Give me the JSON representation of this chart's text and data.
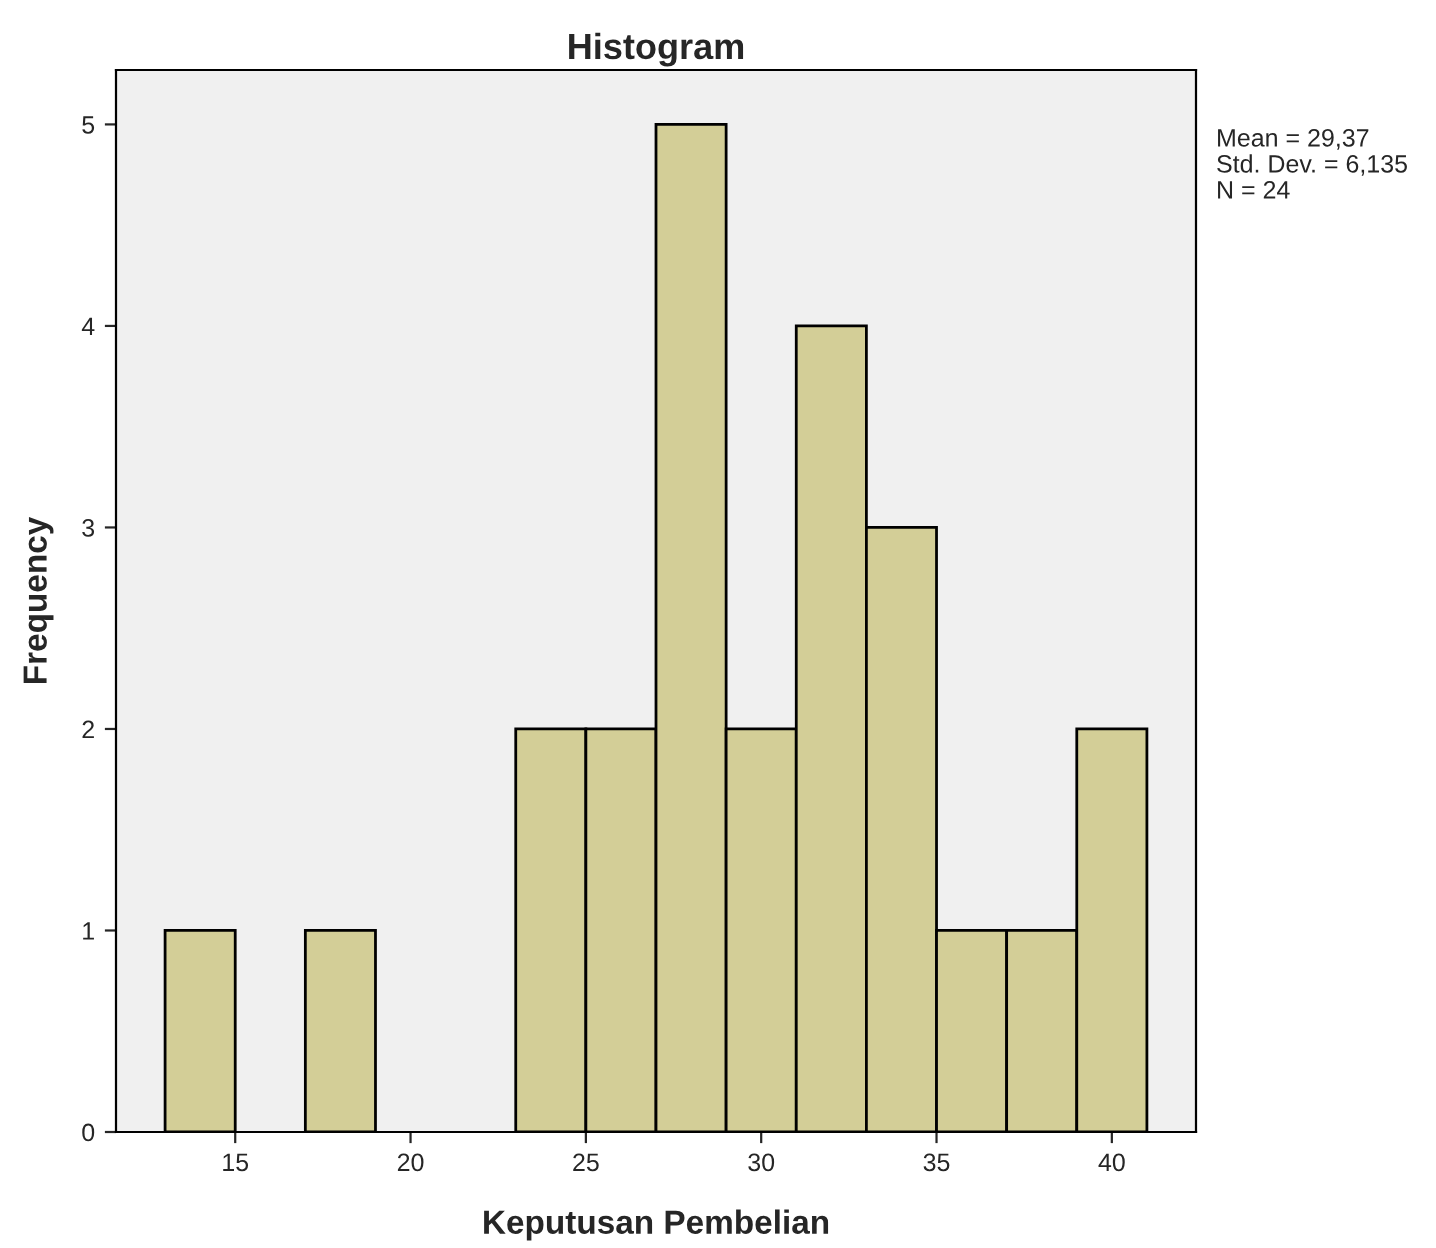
{
  "chart_data": {
    "type": "histogram",
    "title": "Histogram",
    "xlabel": "Keputusan Pembelian",
    "ylabel": "Frequency",
    "bins": [
      13,
      15,
      17,
      19,
      21,
      23,
      25,
      27,
      29,
      31,
      33,
      35,
      37,
      39,
      41
    ],
    "values": [
      1,
      0,
      1,
      0,
      0,
      2,
      2,
      5,
      2,
      4,
      3,
      1,
      1,
      2
    ],
    "color": "#d3ce97",
    "xlim": [
      11.6,
      42.4
    ],
    "xticks": [
      15,
      20,
      25,
      30,
      35,
      40
    ],
    "ylim": [
      0,
      5.27
    ],
    "yticks": [
      0,
      1,
      2,
      3,
      4,
      5
    ],
    "grid": false,
    "legend": false,
    "annotations": [
      "Mean = 29,37",
      "Std. Dev. = 6,135",
      "N = 24"
    ]
  }
}
